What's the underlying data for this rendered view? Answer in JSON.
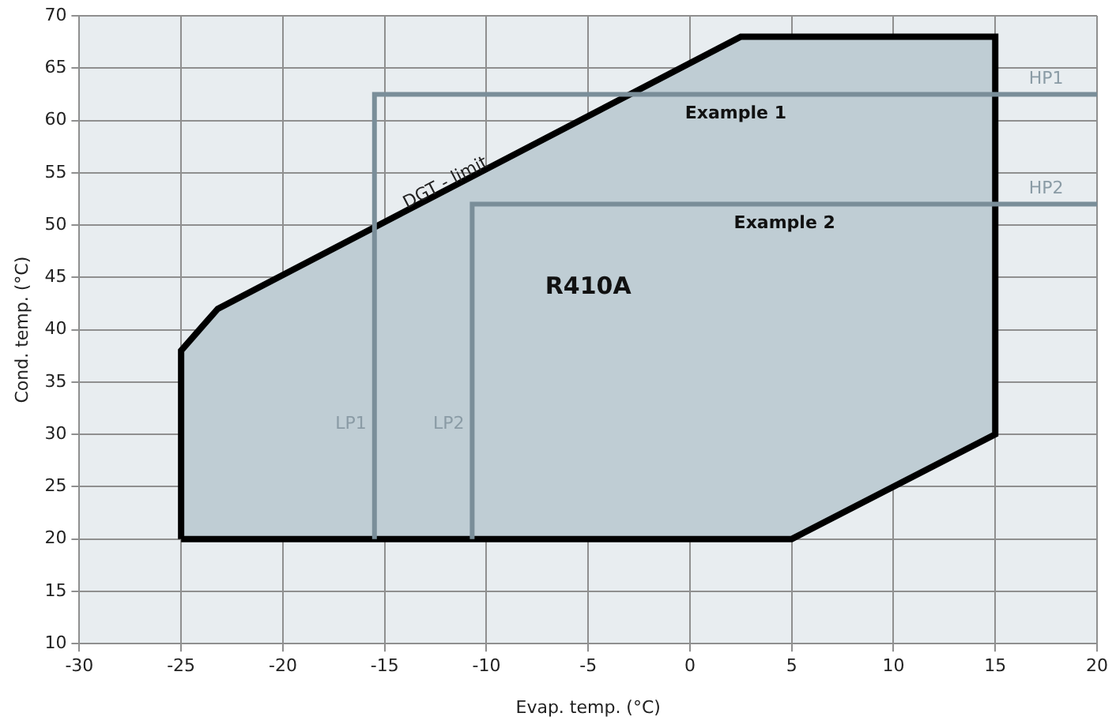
{
  "chart_data": {
    "type": "area",
    "xlabel": "Evap. temp. (°C)",
    "ylabel": "Cond. temp. (°C)",
    "xlim": [
      -30,
      20
    ],
    "xticks": [
      -30,
      -25,
      -20,
      -15,
      -10,
      -5,
      0,
      5,
      10,
      15,
      20
    ],
    "ylim": [
      10,
      70
    ],
    "yticks": [
      10,
      15,
      20,
      25,
      30,
      35,
      40,
      45,
      50,
      55,
      60,
      65,
      70
    ],
    "grid": true,
    "legend": false,
    "series": [
      {
        "type": "area",
        "name": "R410A",
        "color": "#000000",
        "x": [
          -25,
          -25,
          -23.2,
          2.5,
          15,
          15,
          5,
          -25
        ],
        "values": [
          20,
          38,
          42,
          68,
          68,
          30,
          20,
          20
        ]
      },
      {
        "type": "line",
        "name": "Example 1",
        "color": "#7a8e99",
        "x": [
          -15.5,
          -15.5,
          20
        ],
        "values": [
          20,
          62.5,
          62.5
        ]
      },
      {
        "type": "line",
        "name": "Example 2",
        "color": "#7a8e99",
        "x": [
          -10.7,
          -10.7,
          20
        ],
        "values": [
          20,
          52,
          52
        ]
      }
    ],
    "annotations": [
      {
        "text": "DGT - limit",
        "x": -12,
        "y": 54
      },
      {
        "text": "LP1",
        "x": -15.5,
        "y": 31
      },
      {
        "text": "LP2",
        "x": -10.7,
        "y": 31
      },
      {
        "text": "HP1",
        "x": 17.5,
        "y": 62.5
      },
      {
        "text": "HP2",
        "x": 17.5,
        "y": 52
      }
    ]
  }
}
